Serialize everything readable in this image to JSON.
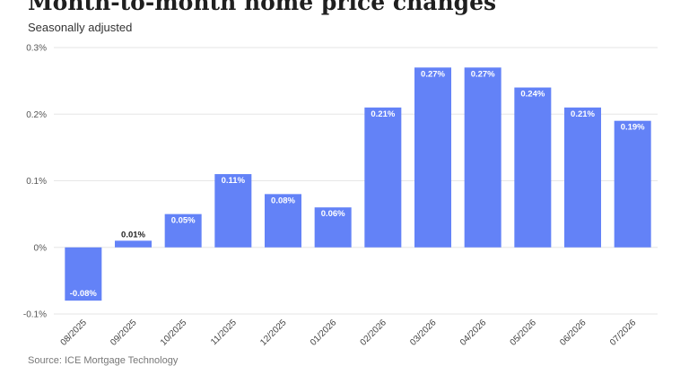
{
  "header": {
    "title": "Month-to-month home price changes",
    "subtitle": "Seasonally adjusted"
  },
  "footer": {
    "source": "Source: ICE Mortgage Technology"
  },
  "colors": {
    "bar": "#6382f7",
    "grid": "#e6e6e6",
    "label_inside": "#ffffff",
    "label_outside": "#222222"
  },
  "chart_data": {
    "type": "bar",
    "title": "Month-to-month home price changes",
    "subtitle": "Seasonally adjusted",
    "xlabel": "",
    "ylabel": "",
    "categories": [
      "08/2025",
      "09/2025",
      "10/2025",
      "11/2025",
      "12/2025",
      "01/2026",
      "02/2026",
      "03/2026",
      "04/2026",
      "05/2026",
      "06/2026",
      "07/2026"
    ],
    "values": [
      -0.08,
      0.01,
      0.05,
      0.11,
      0.08,
      0.06,
      0.21,
      0.27,
      0.27,
      0.24,
      0.21,
      0.19
    ],
    "data_labels": [
      "-0.08%",
      "0.01%",
      "0.05%",
      "0.11%",
      "0.08%",
      "0.06%",
      "0.21%",
      "0.27%",
      "0.27%",
      "0.24%",
      "0.21%",
      "0.19%"
    ],
    "yticks": [
      -0.1,
      0,
      0.1,
      0.2,
      0.3
    ],
    "ytick_labels": [
      "-0.1%",
      "0%",
      "0.1%",
      "0.2%",
      "0.3%"
    ],
    "ylim": [
      -0.1,
      0.3
    ],
    "grid": true,
    "legend": "none"
  }
}
